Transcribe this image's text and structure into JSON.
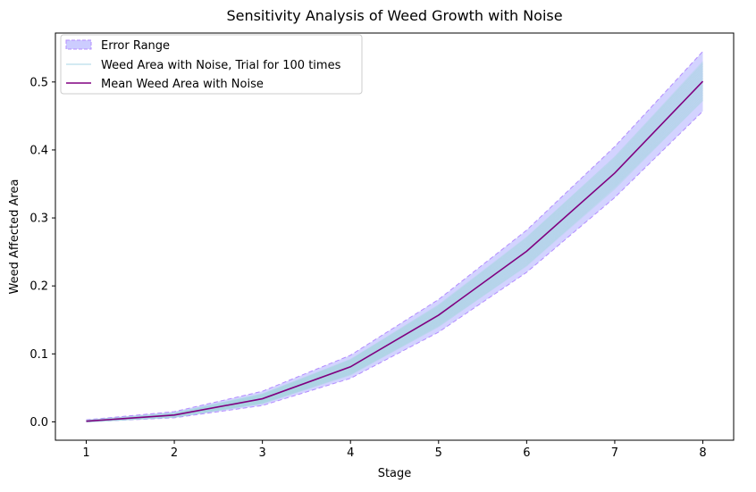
{
  "chart_data": {
    "type": "line",
    "title": "Sensitivity Analysis of Weed Growth with Noise",
    "xlabel": "Stage",
    "ylabel": "Weed Affected Area",
    "xlim": [
      0.65,
      8.35
    ],
    "ylim": [
      -0.027,
      0.572
    ],
    "x_ticks": [
      1,
      2,
      3,
      4,
      5,
      6,
      7,
      8
    ],
    "y_ticks": [
      0.0,
      0.1,
      0.2,
      0.3,
      0.4,
      0.5
    ],
    "y_tick_labels": [
      "0.0",
      "0.1",
      "0.2",
      "0.3",
      "0.4",
      "0.5"
    ],
    "grid": false,
    "legend_position": "top-left",
    "x": [
      1,
      2,
      3,
      4,
      5,
      6,
      7,
      8
    ],
    "series": [
      {
        "name": "Error Range",
        "kind": "band",
        "lower": [
          0.0,
          0.006,
          0.024,
          0.064,
          0.132,
          0.22,
          0.33,
          0.457
        ],
        "upper": [
          0.003,
          0.015,
          0.045,
          0.098,
          0.18,
          0.282,
          0.405,
          0.545
        ],
        "color": "#8080ff"
      },
      {
        "name": "Weed Area with Noise, Trial for 100 times",
        "kind": "trials",
        "lower": [
          0.0,
          0.007,
          0.027,
          0.069,
          0.14,
          0.229,
          0.343,
          0.472
        ],
        "upper": [
          0.002,
          0.013,
          0.041,
          0.092,
          0.172,
          0.272,
          0.39,
          0.53
        ],
        "color": "#add8e6"
      },
      {
        "name": "Mean Weed Area with Noise",
        "kind": "line",
        "values": [
          0.001,
          0.01,
          0.034,
          0.081,
          0.157,
          0.251,
          0.366,
          0.501
        ],
        "color": "#800080"
      }
    ]
  }
}
